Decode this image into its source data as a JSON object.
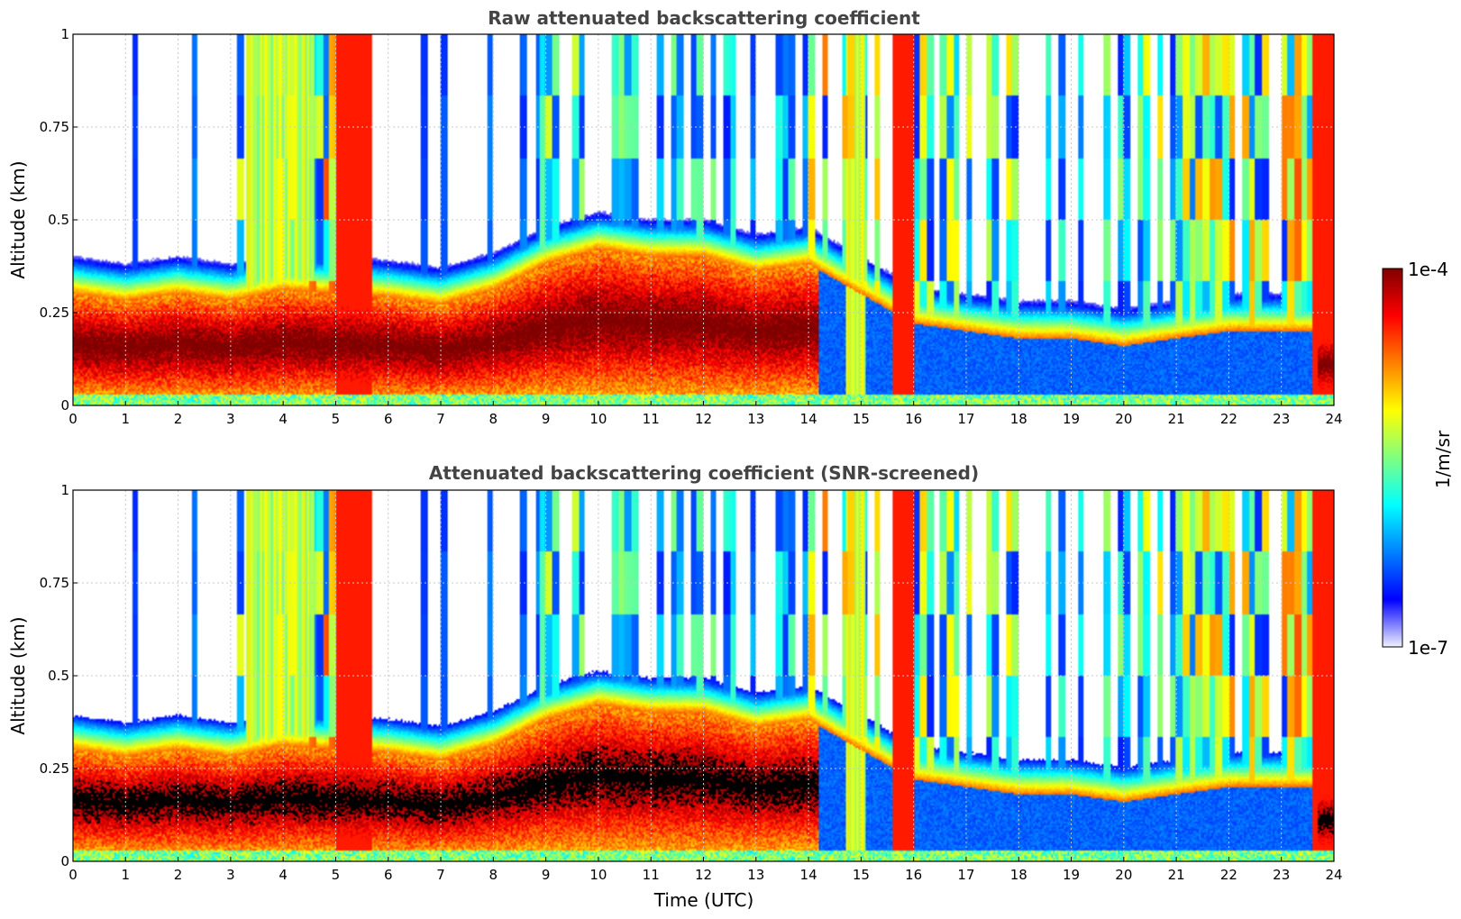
{
  "figure": {
    "xlabel": "Time (UTC)"
  },
  "chart_data": [
    {
      "type": "heatmap",
      "title": "Raw attenuated backscattering coefficient",
      "xlabel": "",
      "ylabel": "Altitude (km)",
      "xlim": [
        0,
        24
      ],
      "ylim": [
        0,
        1
      ],
      "xticks": [
        "0",
        "1",
        "2",
        "3",
        "4",
        "5",
        "6",
        "7",
        "8",
        "9",
        "10",
        "11",
        "12",
        "13",
        "14",
        "15",
        "16",
        "17",
        "18",
        "19",
        "20",
        "21",
        "22",
        "23",
        "24"
      ],
      "yticks": [
        "0",
        "0.25",
        "0.5",
        "0.75",
        "1"
      ],
      "grid": true,
      "colorscale": "jet",
      "screened": false
    },
    {
      "type": "heatmap",
      "title": "Attenuated backscattering coefficient (SNR-screened)",
      "xlabel": "Time (UTC)",
      "ylabel": "Altitude (km)",
      "xlim": [
        0,
        24
      ],
      "ylim": [
        0,
        1
      ],
      "xticks": [
        "0",
        "1",
        "2",
        "3",
        "4",
        "5",
        "6",
        "7",
        "8",
        "9",
        "10",
        "11",
        "12",
        "13",
        "14",
        "15",
        "16",
        "17",
        "18",
        "19",
        "20",
        "21",
        "22",
        "23",
        "24"
      ],
      "yticks": [
        "0",
        "0.25",
        "0.5",
        "0.75",
        "1"
      ],
      "grid": true,
      "colorscale": "jet",
      "screened": true
    }
  ],
  "colorbar": {
    "max_label": "1e-4",
    "min_label": "1e-7",
    "unit_label": "1/m/sr",
    "placement": "right"
  },
  "colors": {
    "jet_stops": [
      "#f0f0ff",
      "#0000ff",
      "#0080ff",
      "#00ffff",
      "#80ff80",
      "#ffff00",
      "#ff8000",
      "#ff0000",
      "#800000"
    ],
    "saturated": "#000000",
    "title_color": "#444444"
  }
}
